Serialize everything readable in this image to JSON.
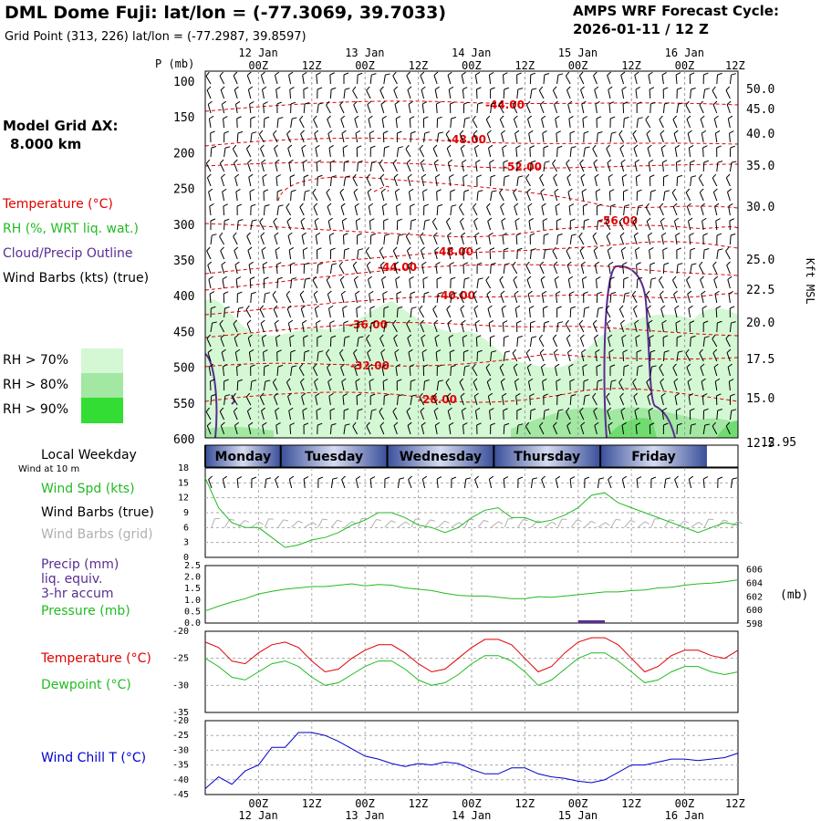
{
  "header": {
    "title": "DML Dome Fuji:  lat/lon = (-77.3069, 39.7033)",
    "grid_point": "Grid Point (313, 226) lat/lon = (-77.2987, 39.8597)",
    "cycle_line1": "AMPS WRF Forecast Cycle:",
    "cycle_line2": "2026-01-11 / 12  Z"
  },
  "left_panel": {
    "model_grid_label": "Model Grid ΔX:",
    "model_grid_value": "8.000 km",
    "temperature_label": "Temperature (°C)",
    "rh_label": "RH (%, WRT liq. wat.)",
    "cloud_label": "Cloud/Precip Outline",
    "wind_barbs_label": "Wind Barbs (kts) (true)",
    "rh70": "RH > 70%",
    "rh80": "RH > 80%",
    "rh90": "RH > 90%",
    "local_weekday": "Local Weekday",
    "wind_at_10m": "Wind at 10 m",
    "wind_spd": "Wind Spd (kts)",
    "wind_barbs_true": "Wind Barbs (true)",
    "wind_barbs_grid": "Wind Barbs (grid)",
    "precip": "Precip (mm)",
    "liq_equiv": "liq. equiv.",
    "accum": "3-hr accum",
    "pressure": "Pressure (mb)",
    "temperature2": "Temperature (°C)",
    "dewpoint": "Dewpoint (°C)",
    "wind_chill": "Wind Chill T (°C)"
  },
  "colors": {
    "temperature": "#e00000",
    "rh_green": "#22bb22",
    "cloud": "#5a2d91",
    "wind_chill": "#0000cc",
    "grey_barbs": "#b0b0b0",
    "rh70": "#d4f7d4",
    "rh80": "#a2e8a2",
    "rh90": "#33dd33",
    "weekday_bar": "#3a4f9a"
  },
  "chart_data": [
    {
      "type": "heatmap",
      "name": "upper-air time-height cross section",
      "y_label": "P (mb)",
      "y_right_label": "Kft MSL",
      "y_ticks": [
        100,
        150,
        200,
        250,
        300,
        350,
        400,
        450,
        500,
        550,
        600
      ],
      "y_right_ticks": [
        "50.0",
        "45.0",
        "40.0",
        "35.0",
        "30.0",
        "25.0",
        "22.5",
        "20.0",
        "17.5",
        "15.0",
        "12.5"
      ],
      "y_right_extra": "12.95",
      "x_time_ticks": [
        "00Z",
        "12Z",
        "00Z",
        "12Z",
        "00Z",
        "12Z",
        "00Z",
        "12Z",
        "00Z",
        "12Z"
      ],
      "x_date_ticks": [
        "12 Jan",
        "13 Jan",
        "14 Jan",
        "15 Jan",
        "16 Jan"
      ],
      "temperature_contour_labels": [
        "-44.00",
        "-48.00",
        "-52.00",
        "-56.00",
        "-48.00",
        "-44.00",
        "-40.00",
        "-36.00",
        "-32.00",
        "-28.00"
      ]
    },
    {
      "type": "table",
      "name": "local weekday",
      "days": [
        "Monday",
        "Tuesday",
        "Wednesday",
        "Thursday",
        "Friday"
      ]
    },
    {
      "type": "line",
      "name": "10 m wind speed",
      "ylim": [
        0,
        18
      ],
      "y_ticks": [
        "0",
        "3",
        "6",
        "9",
        "12",
        "15",
        "18"
      ],
      "x_hours": [
        0,
        3,
        6,
        9,
        12,
        15,
        18,
        21,
        24,
        27,
        30,
        33,
        36,
        39,
        42,
        45,
        48,
        51,
        54,
        57,
        60,
        63,
        66,
        69,
        72,
        75,
        78,
        81,
        84,
        87,
        90,
        93,
        96,
        99,
        102,
        105,
        108,
        111,
        114,
        117,
        120
      ],
      "values": [
        16,
        10,
        7,
        6,
        6,
        4,
        2,
        2.5,
        3.5,
        4,
        5,
        6.5,
        7.5,
        9,
        9,
        8,
        6.5,
        6,
        5,
        6,
        8,
        9.5,
        10,
        8,
        8,
        7,
        7.5,
        8.5,
        10,
        12.5,
        13,
        11,
        10,
        9,
        8,
        7,
        6,
        5,
        6,
        7,
        6.5
      ]
    },
    {
      "type": "line",
      "name": "precip and pressure",
      "y_ticks_left": [
        "0.0",
        "0.5",
        "1.0",
        "1.5",
        "2.0",
        "2.5"
      ],
      "y_ticks_right": [
        "598",
        "600",
        "602",
        "604",
        "606"
      ],
      "y_right_label": "(mb)",
      "pressure_ylim": [
        598,
        606.5
      ],
      "x_hours": [
        0,
        3,
        6,
        9,
        12,
        15,
        18,
        21,
        24,
        27,
        30,
        33,
        36,
        39,
        42,
        45,
        48,
        51,
        54,
        57,
        60,
        63,
        66,
        69,
        72,
        75,
        78,
        81,
        84,
        87,
        90,
        93,
        96,
        99,
        102,
        105,
        108,
        111,
        114,
        117,
        120
      ],
      "pressure": [
        599.8,
        600.5,
        601.1,
        601.6,
        602.3,
        602.7,
        603.0,
        603.2,
        603.4,
        603.4,
        603.6,
        603.8,
        603.5,
        603.7,
        603.6,
        603.2,
        603.0,
        602.8,
        602.4,
        602.1,
        602.0,
        602.0,
        601.8,
        601.6,
        601.6,
        601.9,
        601.8,
        602.0,
        602.2,
        602.4,
        602.6,
        602.6,
        602.8,
        602.9,
        603.2,
        603.3,
        603.6,
        603.8,
        603.9,
        604.1,
        604.4
      ],
      "precip_note_hours": [
        84,
        90
      ]
    },
    {
      "type": "line",
      "name": "temperature and dewpoint",
      "ylim": [
        -35,
        -20
      ],
      "y_ticks": [
        "-20",
        "-25",
        "-30",
        "-35"
      ],
      "x_hours": [
        0,
        3,
        6,
        9,
        12,
        15,
        18,
        21,
        24,
        27,
        30,
        33,
        36,
        39,
        42,
        45,
        48,
        51,
        54,
        57,
        60,
        63,
        66,
        69,
        72,
        75,
        78,
        81,
        84,
        87,
        90,
        93,
        96,
        99,
        102,
        105,
        108,
        111,
        114,
        117,
        120
      ],
      "series": [
        {
          "name": "Temperature",
          "values": [
            -22,
            -23,
            -25.5,
            -26,
            -24,
            -22.5,
            -22,
            -23,
            -25.5,
            -27.5,
            -27,
            -25,
            -23.5,
            -22.5,
            -22.5,
            -24,
            -26,
            -27.5,
            -27,
            -25,
            -23,
            -21.5,
            -21.5,
            -22.5,
            -25,
            -27.5,
            -26.5,
            -24,
            -22,
            -21.2,
            -21.2,
            -22.5,
            -25,
            -27.5,
            -26.5,
            -24.5,
            -23.5,
            -23.5,
            -24.5,
            -25,
            -23.5
          ]
        },
        {
          "name": "Dewpoint",
          "values": [
            -25,
            -26.5,
            -28.5,
            -29,
            -27.5,
            -26,
            -25.5,
            -26.5,
            -28.5,
            -30,
            -29.5,
            -28,
            -26.5,
            -25.5,
            -25.5,
            -27,
            -29,
            -30,
            -29.5,
            -28,
            -26,
            -24.5,
            -24.5,
            -25.5,
            -27.5,
            -30,
            -29,
            -27,
            -25,
            -24,
            -24,
            -25.5,
            -27.5,
            -29.5,
            -29,
            -27.5,
            -26.5,
            -26.5,
            -27.5,
            -28,
            -27.5
          ]
        }
      ]
    },
    {
      "type": "line",
      "name": "wind chill temperature",
      "ylim": [
        -45,
        -20
      ],
      "y_ticks": [
        "-20",
        "-25",
        "-30",
        "-35",
        "-40",
        "-45"
      ],
      "x_hours": [
        0,
        3,
        6,
        9,
        12,
        15,
        18,
        21,
        24,
        27,
        30,
        33,
        36,
        39,
        42,
        45,
        48,
        51,
        54,
        57,
        60,
        63,
        66,
        69,
        72,
        75,
        78,
        81,
        84,
        87,
        90,
        93,
        96,
        99,
        102,
        105,
        108,
        111,
        114,
        117,
        120
      ],
      "values": [
        -43,
        -39,
        -41.5,
        -37,
        -35,
        -29,
        -29,
        -24,
        -24,
        -25,
        -27,
        -29.5,
        -32,
        -33,
        -34.5,
        -35.5,
        -34.5,
        -35,
        -34,
        -34.5,
        -36.5,
        -38,
        -38,
        -36,
        -36,
        -38,
        -39,
        -39.5,
        -40.5,
        -41,
        -40,
        -37.5,
        -35,
        -35,
        -34,
        -33,
        -33,
        -33.5,
        -33,
        -32.5,
        -31
      ]
    }
  ]
}
